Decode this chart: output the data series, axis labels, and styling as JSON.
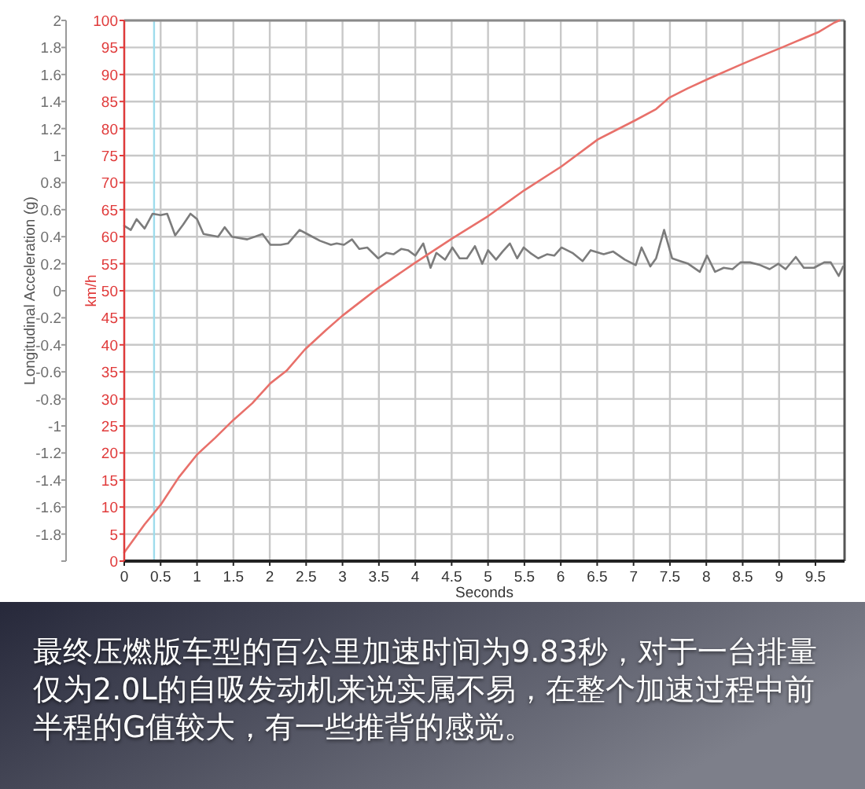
{
  "chart_data": {
    "type": "line",
    "xlabel": "Seconds",
    "ylabel": "Longitudinal Acceleration (g)",
    "y2label": "km/h",
    "xlim": [
      0,
      9.9
    ],
    "xticks": [
      0,
      0.5,
      1,
      1.5,
      2,
      2.5,
      3,
      3.5,
      4,
      4.5,
      5,
      5.5,
      6,
      6.5,
      7,
      7.5,
      8,
      8.5,
      9,
      9.5
    ],
    "ylim": [
      -2,
      2
    ],
    "yticks": [
      {
        "value": -2,
        "label": null
      },
      -1.8,
      -1.6,
      -1.4,
      -1.2,
      -1,
      -0.8,
      -0.6,
      -0.4,
      -0.2,
      0,
      0.2,
      0.4,
      0.6,
      0.8,
      1,
      1.2,
      1.4,
      1.6,
      1.8,
      2
    ],
    "y2lim": [
      0,
      100
    ],
    "y2ticks": [
      0,
      5,
      10,
      15,
      20,
      25,
      30,
      35,
      40,
      45,
      50,
      55,
      60,
      65,
      70,
      75,
      80,
      85,
      90,
      95,
      100
    ],
    "grid": true,
    "series": [
      {
        "color": "#7c7c7c",
        "x": [
          0,
          0.09,
          0.17,
          0.28,
          0.39,
          0.5,
          0.59,
          0.7,
          0.81,
          0.91,
          1.0,
          1.09,
          1.29,
          1.38,
          1.48,
          1.69,
          1.9,
          2.01,
          2.15,
          2.25,
          2.41,
          2.55,
          2.69,
          2.84,
          2.92,
          3.02,
          3.13,
          3.23,
          3.34,
          3.49,
          3.6,
          3.7,
          3.81,
          3.9,
          4.0,
          4.11,
          4.21,
          4.29,
          4.41,
          4.51,
          4.61,
          4.71,
          4.82,
          4.92,
          5.0,
          5.11,
          5.2,
          5.3,
          5.4,
          5.49,
          5.58,
          5.69,
          5.81,
          5.91,
          6.01,
          6.16,
          6.3,
          6.41,
          6.59,
          6.72,
          6.88,
          7.03,
          7.11,
          7.23,
          7.31,
          7.42,
          7.53,
          7.64,
          7.75,
          7.91,
          8.01,
          8.12,
          8.24,
          8.36,
          8.47,
          8.6,
          8.74,
          8.87,
          8.99,
          9.09,
          9.23,
          9.34,
          9.48,
          9.62,
          9.71,
          9.82,
          9.88
        ],
        "values": [
          0.48,
          0.45,
          0.53,
          0.46,
          0.57,
          0.56,
          0.57,
          0.41,
          0.49,
          0.57,
          0.53,
          0.42,
          0.4,
          0.47,
          0.4,
          0.38,
          0.42,
          0.34,
          0.34,
          0.35,
          0.45,
          0.41,
          0.37,
          0.34,
          0.35,
          0.34,
          0.38,
          0.31,
          0.32,
          0.24,
          0.28,
          0.27,
          0.31,
          0.3,
          0.26,
          0.35,
          0.17,
          0.28,
          0.23,
          0.32,
          0.24,
          0.24,
          0.33,
          0.2,
          0.3,
          0.23,
          0.29,
          0.35,
          0.24,
          0.32,
          0.28,
          0.24,
          0.27,
          0.26,
          0.32,
          0.28,
          0.22,
          0.3,
          0.27,
          0.29,
          0.23,
          0.19,
          0.32,
          0.18,
          0.24,
          0.45,
          0.24,
          0.22,
          0.2,
          0.14,
          0.26,
          0.14,
          0.17,
          0.16,
          0.21,
          0.21,
          0.19,
          0.16,
          0.2,
          0.16,
          0.25,
          0.17,
          0.17,
          0.21,
          0.21,
          0.11,
          0.18
        ]
      },
      {
        "color": "#e8706a",
        "axis": "y2",
        "x": [
          0,
          0.28,
          0.5,
          0.75,
          1.0,
          1.25,
          1.5,
          1.76,
          2.01,
          2.23,
          2.48,
          2.77,
          3.0,
          3.23,
          3.49,
          3.99,
          4.5,
          5.0,
          5.5,
          6.01,
          6.51,
          7.02,
          7.31,
          7.49,
          7.74,
          8.03,
          8.47,
          8.75,
          9.04,
          9.55,
          9.76,
          9.83
        ],
        "values": [
          1.6,
          6.8,
          10.4,
          15.5,
          19.7,
          22.8,
          26.1,
          29.2,
          32.9,
          35.2,
          39.1,
          42.7,
          45.4,
          47.8,
          50.5,
          55.1,
          59.6,
          63.8,
          68.6,
          73,
          78,
          81.5,
          83.6,
          85.7,
          87.4,
          89.2,
          91.8,
          93.4,
          95,
          97.9,
          99.6,
          100
        ]
      }
    ],
    "ref_lines": [
      {
        "axis": "x",
        "value": 0.41,
        "color": "#9edcec"
      }
    ],
    "annotations": [
      "最终压燃版车型的百公里加速时间为9.83秒，对于一台排量仅为2.0L的自吸发动机来说实属不易，在整个加速过程中前半程的G值较大，有一些推背的感觉。"
    ]
  }
}
